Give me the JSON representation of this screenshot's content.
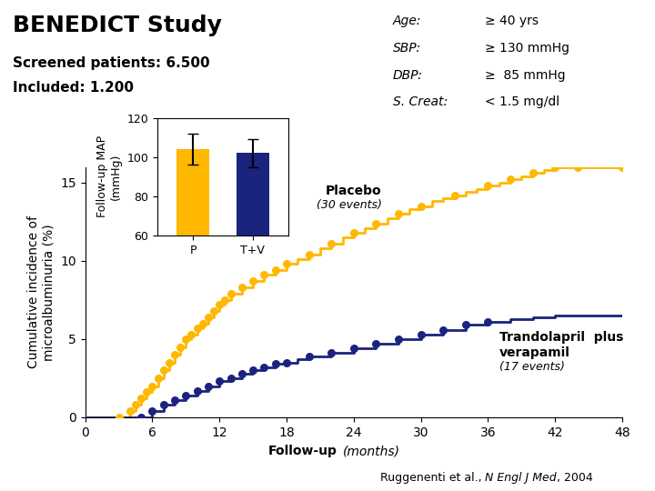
{
  "chart_data": [
    {
      "type": "step",
      "title": "BENEDICT Study",
      "subtitle": [
        "Screened patients: 6.500",
        "Included: 1.200"
      ],
      "info": [
        [
          "Age:",
          "≥ 40 yrs"
        ],
        [
          "SBP:",
          "≥ 130 mmHg"
        ],
        [
          "DBP:",
          "≥  85 mmHg"
        ],
        [
          "S. Creat:",
          "< 1.5 mg/dl"
        ]
      ],
      "xlabel": [
        "Follow-up",
        "(months)"
      ],
      "ylabel": "Cumulative incidence of\nmicroalbuminuria (%)",
      "footnote": [
        "Ruggenenti et al., ",
        "N Engl J Med",
        ", 2004"
      ],
      "xlim": [
        0,
        48
      ],
      "ylim": [
        0,
        16
      ],
      "xticks": [
        0,
        6,
        12,
        18,
        24,
        30,
        36,
        42,
        48
      ],
      "yticks": [
        0,
        5,
        10,
        15
      ],
      "series": [
        {
          "name": "Placebo",
          "annotation": "(30 events)",
          "color": "#FFB800",
          "marker": "circle",
          "x": [
            0,
            3,
            4,
            4.5,
            5,
            5.5,
            6,
            6.5,
            7,
            7.5,
            8,
            8.5,
            9,
            9.5,
            10,
            10.5,
            11,
            11.5,
            12,
            12.5,
            13,
            14,
            15,
            16,
            17,
            18,
            19,
            20,
            21,
            22,
            23,
            24,
            25,
            26,
            27,
            28,
            29,
            30,
            31,
            32,
            33,
            34,
            35,
            36,
            37,
            38,
            39,
            40,
            41,
            42,
            43,
            44,
            45,
            46,
            47,
            48
          ],
          "values": [
            0,
            0,
            0.4,
            0.8,
            1.2,
            1.6,
            2.0,
            2.5,
            3.0,
            3.5,
            4.0,
            4.5,
            5.0,
            5.3,
            5.7,
            6.0,
            6.4,
            6.8,
            7.2,
            7.5,
            7.9,
            8.3,
            8.7,
            9.1,
            9.4,
            9.8,
            10.1,
            10.4,
            10.8,
            11.1,
            11.5,
            11.8,
            12.1,
            12.4,
            12.7,
            13.0,
            13.3,
            13.5,
            13.8,
            14.0,
            14.2,
            14.4,
            14.6,
            14.8,
            15.0,
            15.2,
            15.4,
            15.6,
            15.8,
            16.0,
            16.0,
            16.0,
            16.0,
            16.0,
            16.0,
            16.0
          ],
          "events": {
            "x": [
              3,
              4,
              4.5,
              5,
              5.5,
              6,
              6.5,
              7,
              7.5,
              8,
              8.5,
              9,
              9.5,
              10,
              10.5,
              11,
              11.5,
              12,
              12.5,
              13,
              14,
              15,
              16,
              17,
              18,
              20,
              22,
              24,
              26,
              28,
              30,
              33,
              36,
              38,
              40,
              42,
              44,
              48
            ],
            "values": [
              0,
              0.4,
              0.8,
              1.2,
              1.6,
              2.0,
              2.5,
              3.0,
              3.5,
              4.0,
              4.5,
              5.0,
              5.3,
              5.7,
              6.0,
              6.4,
              6.8,
              7.2,
              7.5,
              7.9,
              8.3,
              8.7,
              9.1,
              9.4,
              9.8,
              10.4,
              11.1,
              11.8,
              12.4,
              13.0,
              13.5,
              14.2,
              14.8,
              15.2,
              15.6,
              16.0,
              16.0,
              16.0
            ]
          }
        },
        {
          "name": "Trandolapril  plus\nverapamil",
          "annotation": "(17 events)",
          "color": "#1a237e",
          "marker": "circle",
          "x": [
            0,
            5,
            6,
            7,
            8,
            9,
            10,
            11,
            12,
            13,
            14,
            15,
            16,
            17,
            18,
            19,
            20,
            22,
            24,
            26,
            28,
            30,
            32,
            34,
            36,
            38,
            40,
            42,
            44,
            46,
            48
          ],
          "values": [
            0,
            0,
            0.4,
            0.8,
            1.1,
            1.4,
            1.7,
            2.0,
            2.3,
            2.5,
            2.8,
            3.0,
            3.2,
            3.4,
            3.5,
            3.7,
            3.9,
            4.1,
            4.4,
            4.7,
            5.0,
            5.3,
            5.6,
            5.9,
            6.1,
            6.3,
            6.4,
            6.5,
            6.5,
            6.5,
            6.5
          ],
          "events": {
            "x": [
              5,
              6,
              7,
              8,
              9,
              10,
              11,
              12,
              13,
              14,
              15,
              16,
              17,
              18,
              20,
              22,
              24,
              26,
              28,
              30,
              32,
              34,
              36
            ],
            "values": [
              0,
              0.4,
              0.8,
              1.1,
              1.4,
              1.7,
              2.0,
              2.3,
              2.5,
              2.8,
              3.0,
              3.2,
              3.4,
              3.5,
              3.9,
              4.1,
              4.4,
              4.7,
              5.0,
              5.3,
              5.6,
              5.9,
              6.1
            ]
          }
        }
      ]
    },
    {
      "type": "bar",
      "categories": [
        "P",
        "T+V"
      ],
      "values": [
        104,
        102
      ],
      "errors": [
        8,
        7
      ],
      "colors": [
        "#FFB800",
        "#1a237e"
      ],
      "ylabel": "Follow-up MAP\n(mmHg)",
      "ylim": [
        60,
        120
      ],
      "yticks": [
        60,
        80,
        100,
        120
      ]
    }
  ]
}
